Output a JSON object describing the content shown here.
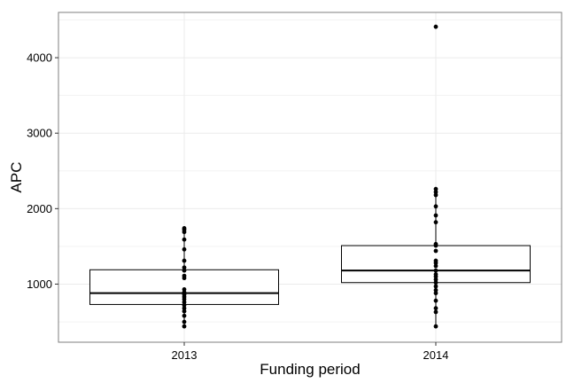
{
  "chart_data": {
    "type": "boxplot",
    "xlabel": "Funding period",
    "ylabel": "APC",
    "categories": [
      "2013",
      "2014"
    ],
    "ylim": [
      230,
      4600
    ],
    "yticks": [
      1000,
      2000,
      3000,
      4000
    ],
    "grid": true,
    "boxes": [
      {
        "category": "2013",
        "q1": 730,
        "median": 880,
        "q3": 1190,
        "whisker_low": 440,
        "whisker_high": 1740
      },
      {
        "category": "2014",
        "q1": 1020,
        "median": 1180,
        "q3": 1510,
        "whisker_low": 440,
        "whisker_high": 2260
      }
    ],
    "points": [
      {
        "category": "2013",
        "values": [
          440,
          500,
          580,
          640,
          680,
          720,
          760,
          800,
          830,
          860,
          890,
          930,
          1080,
          1110,
          1180,
          1220,
          1310,
          1460,
          1590,
          1690,
          1720,
          1740
        ]
      },
      {
        "category": "2014",
        "values": [
          440,
          630,
          680,
          780,
          880,
          920,
          970,
          1020,
          1060,
          1100,
          1130,
          1180,
          1240,
          1280,
          1310,
          1440,
          1510,
          1530,
          1820,
          1910,
          2030,
          2180,
          2220,
          2260,
          4410
        ]
      }
    ],
    "colors": {
      "box_line": "#000000",
      "point": "#000000",
      "grid": "#ebebeb",
      "frame": "#7f7f7f",
      "background": "#ffffff"
    }
  }
}
